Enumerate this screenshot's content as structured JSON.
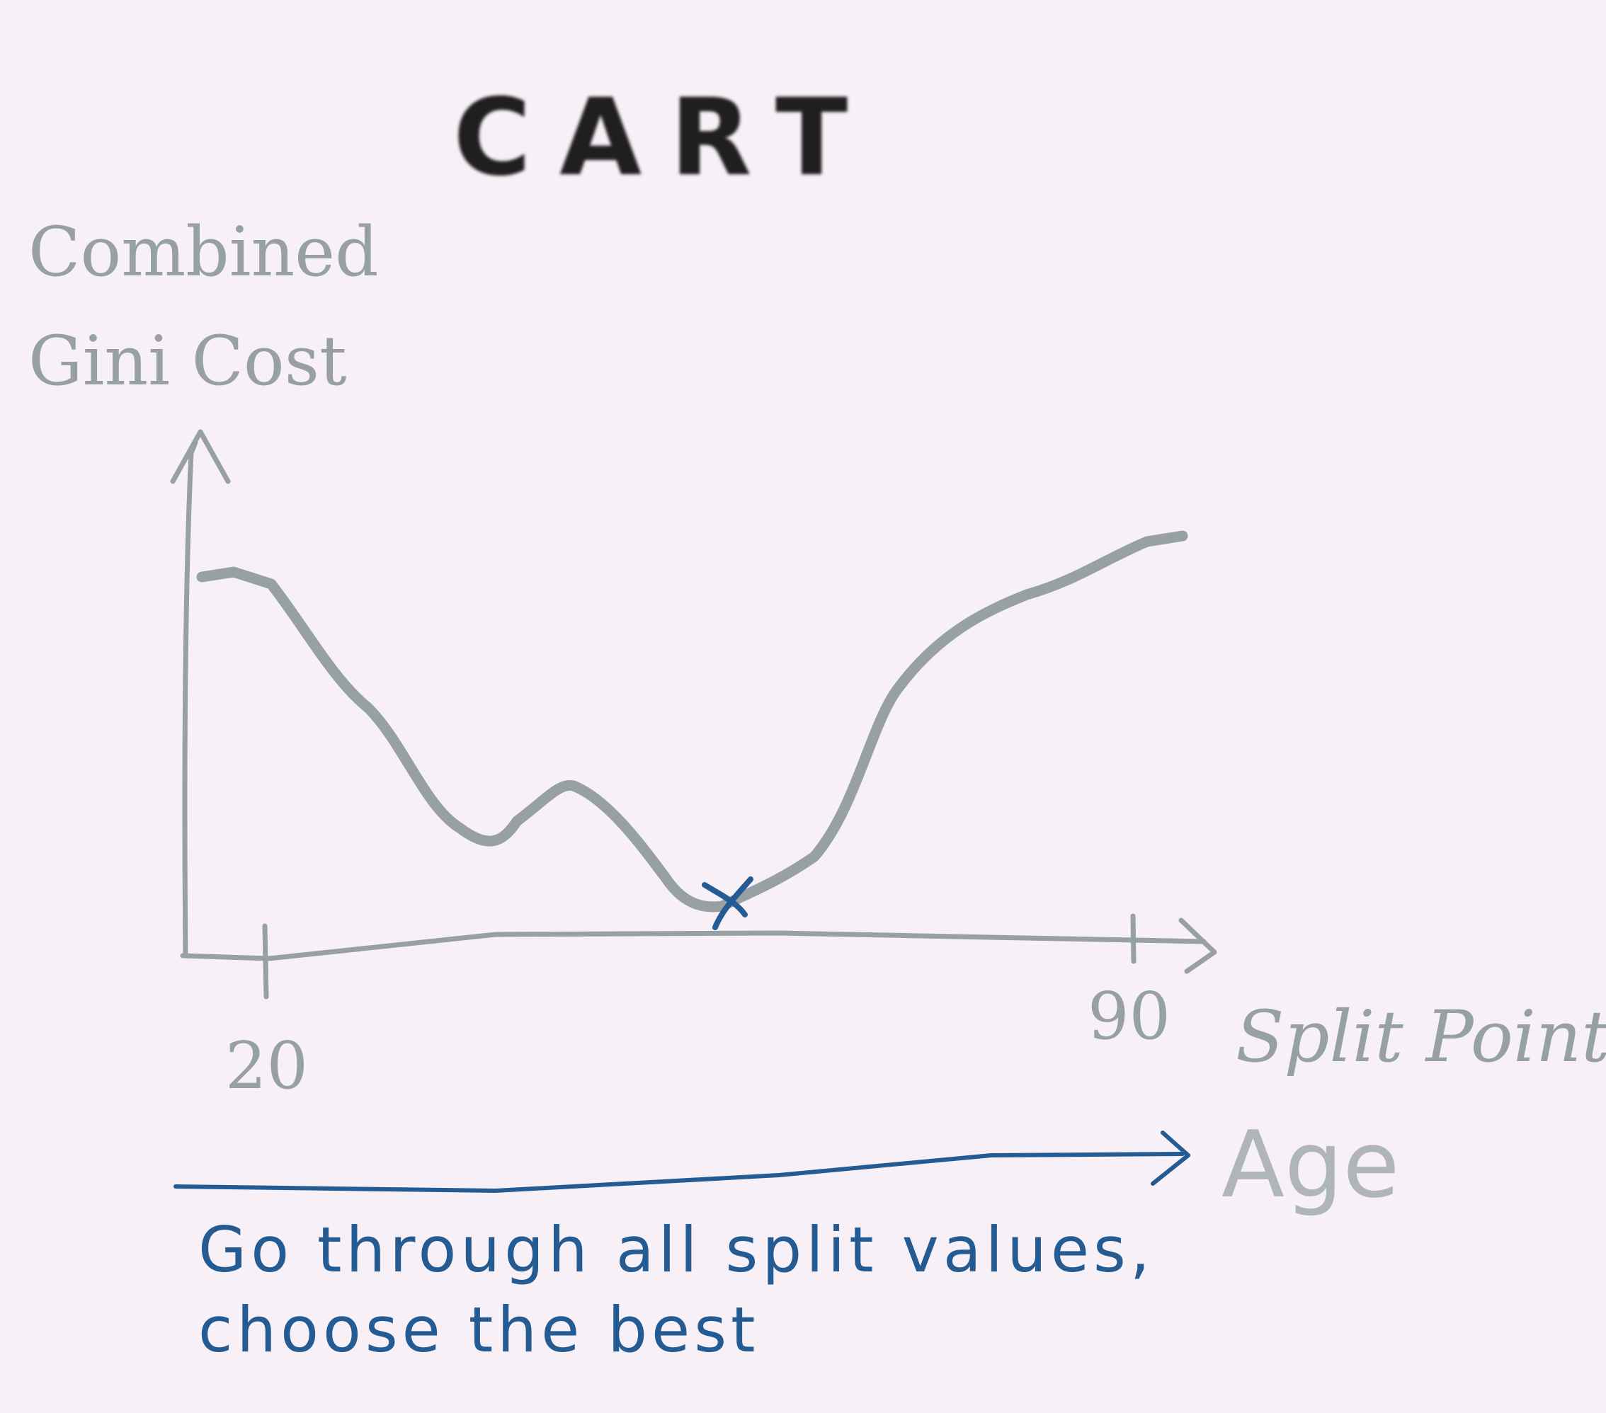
{
  "title": "CART",
  "y_axis_label": "Combined\nGini Cost",
  "x_axis_label": "Split Point",
  "x_tick_min": "20",
  "x_tick_max": "90",
  "feature_label": "Age",
  "caption": "Go through all split values,\nchoose the best",
  "minimum_marker": "X",
  "colors": {
    "background": "#f7f0f7",
    "title": "#1f1f1f",
    "curve": "#97a0a2",
    "annotation": "#245b93"
  }
}
